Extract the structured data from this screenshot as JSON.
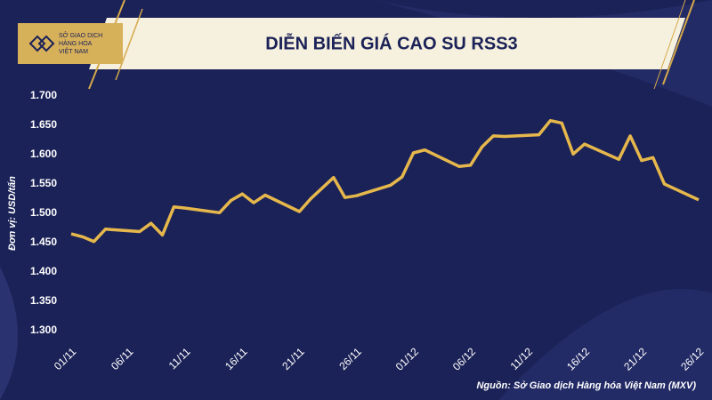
{
  "logo": [
    "SỞ GIAO DỊCH",
    "HÀNG HÓA",
    "VIỆT NAM"
  ],
  "chart_data": {
    "type": "line",
    "title": "DIỄN BIẾN GIÁ CAO SU RSS3",
    "y_label": "Đơn vị: USD/tấn",
    "source": "Nguồn: Sở Giao dịch Hàng hóa Việt Nam (MXV)",
    "x": [
      "01/11",
      "02/11",
      "03/11",
      "04/11",
      "07/11",
      "08/11",
      "09/11",
      "10/11",
      "11/11",
      "14/11",
      "15/11",
      "16/11",
      "17/11",
      "18/11",
      "21/11",
      "22/11",
      "24/11",
      "25/11",
      "26/11",
      "29/11",
      "30/11",
      "01/12",
      "02/12",
      "05/12",
      "06/12",
      "07/12",
      "08/12",
      "09/12",
      "12/12",
      "13/12",
      "14/12",
      "15/12",
      "16/12",
      "19/12",
      "20/12",
      "21/12",
      "22/12",
      "23/12",
      "26/12"
    ],
    "series": [
      {
        "name": "RSS3",
        "color": "#e6b84c",
        "values": [
          1465,
          1460,
          1452,
          1473,
          1469,
          1483,
          1463,
          1511,
          1509,
          1501,
          1522,
          1533,
          1518,
          1531,
          1503,
          1525,
          1561,
          1527,
          1530,
          1548,
          1562,
          1603,
          1608,
          1580,
          1582,
          1613,
          1632,
          1631,
          1634,
          1658,
          1654,
          1601,
          1618,
          1592,
          1632,
          1590,
          1595,
          1550,
          1523
        ]
      }
    ],
    "xlim": [
      "01/11",
      "26/12"
    ],
    "xticks": [
      "01/11",
      "06/11",
      "11/11",
      "16/11",
      "21/11",
      "26/11",
      "01/12",
      "06/12",
      "11/12",
      "16/12",
      "21/12",
      "26/12"
    ],
    "ylim": [
      1300,
      1700
    ],
    "yticks": [
      {
        "value": 1300,
        "label": "1.300"
      },
      {
        "value": 1350,
        "label": "1.350"
      },
      {
        "value": 1400,
        "label": "1.400"
      },
      {
        "value": 1450,
        "label": "1.450"
      },
      {
        "value": 1500,
        "label": "1.500"
      },
      {
        "value": 1550,
        "label": "1.550"
      },
      {
        "value": 1600,
        "label": "1.600"
      },
      {
        "value": 1650,
        "label": "1.650"
      },
      {
        "value": 1700,
        "label": "1.700"
      }
    ],
    "grid": false
  }
}
